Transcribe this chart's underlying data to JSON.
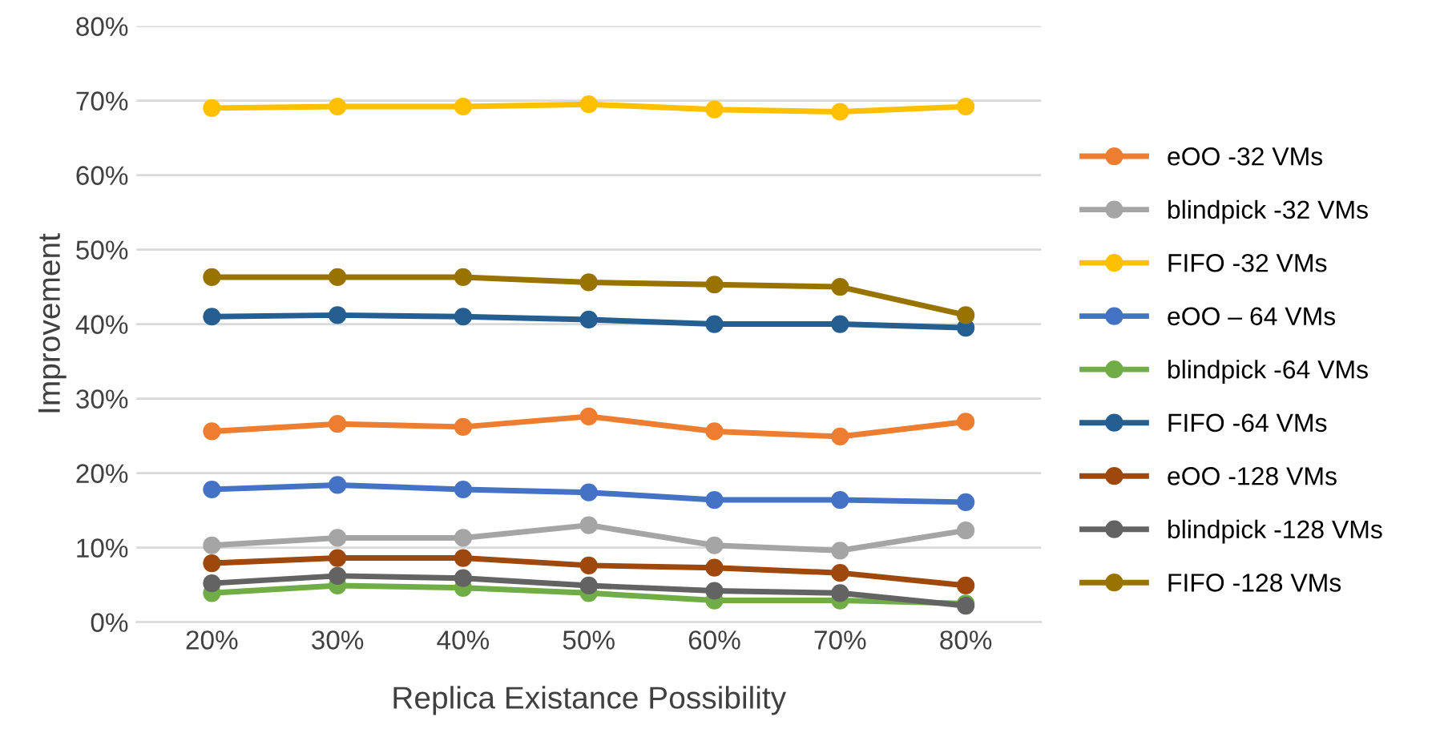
{
  "chart_data": {
    "type": "line",
    "xlabel": "Replica Existance Possibility",
    "ylabel": "Improvement",
    "categories": [
      "20%",
      "30%",
      "40%",
      "50%",
      "60%",
      "70%",
      "80%"
    ],
    "ylim": [
      0,
      80
    ],
    "yticks": [
      {
        "value": 0,
        "label": "0%"
      },
      {
        "value": 10,
        "label": "10%"
      },
      {
        "value": 20,
        "label": "20%"
      },
      {
        "value": 30,
        "label": "30%"
      },
      {
        "value": 40,
        "label": "40%"
      },
      {
        "value": 50,
        "label": "50%"
      },
      {
        "value": 60,
        "label": "60%"
      },
      {
        "value": 70,
        "label": "70%"
      },
      {
        "value": 80,
        "label": "80%"
      }
    ],
    "grid": "y",
    "legend": "right",
    "marker": "circle",
    "line_style": "solid",
    "series": [
      {
        "name": "eOO -32 VMs",
        "color": "#ed7d31",
        "values": [
          25.6,
          26.6,
          26.2,
          27.6,
          25.6,
          24.9,
          26.9
        ]
      },
      {
        "name": "blindpick -32 VMs",
        "color": "#a5a5a5",
        "values": [
          10.3,
          11.3,
          11.3,
          13,
          10.3,
          9.6,
          12.3
        ]
      },
      {
        "name": "FIFO -32 VMs",
        "color": "#ffc000",
        "values": [
          69,
          69.2,
          69.2,
          69.5,
          68.8,
          68.5,
          69.2
        ]
      },
      {
        "name": "eOO – 64 VMs",
        "color": "#4472c4",
        "values": [
          17.8,
          18.4,
          17.8,
          17.4,
          16.4,
          16.4,
          16.1
        ]
      },
      {
        "name": "blindpick -64 VMs",
        "color": "#70ad47",
        "values": [
          3.9,
          4.9,
          4.6,
          3.9,
          2.9,
          2.9,
          2.5
        ]
      },
      {
        "name": "FIFO -64 VMs",
        "color": "#255e91",
        "values": [
          41,
          41.2,
          41,
          40.6,
          40,
          40,
          39.5
        ]
      },
      {
        "name": "eOO -128 VMs",
        "color": "#9e480e",
        "values": [
          7.9,
          8.6,
          8.6,
          7.6,
          7.3,
          6.6,
          4.9
        ]
      },
      {
        "name": "blindpick -128 VMs",
        "color": "#636363",
        "values": [
          5.2,
          6.2,
          5.9,
          4.9,
          4.2,
          3.9,
          2.2
        ]
      },
      {
        "name": "FIFO -128 VMs",
        "color": "#997300",
        "values": [
          46.3,
          46.3,
          46.3,
          45.6,
          45.3,
          45,
          41.2
        ]
      }
    ]
  }
}
